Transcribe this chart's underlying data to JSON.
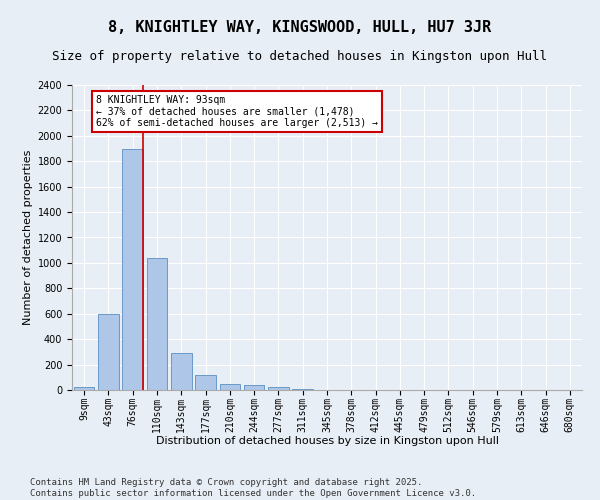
{
  "title": "8, KNIGHTLEY WAY, KINGSWOOD, HULL, HU7 3JR",
  "subtitle": "Size of property relative to detached houses in Kingston upon Hull",
  "xlabel": "Distribution of detached houses by size in Kingston upon Hull",
  "ylabel": "Number of detached properties",
  "footer": "Contains HM Land Registry data © Crown copyright and database right 2025.\nContains public sector information licensed under the Open Government Licence v3.0.",
  "categories": [
    "9sqm",
    "43sqm",
    "76sqm",
    "110sqm",
    "143sqm",
    "177sqm",
    "210sqm",
    "244sqm",
    "277sqm",
    "311sqm",
    "345sqm",
    "378sqm",
    "412sqm",
    "445sqm",
    "479sqm",
    "512sqm",
    "546sqm",
    "579sqm",
    "613sqm",
    "646sqm",
    "680sqm"
  ],
  "values": [
    20,
    600,
    1900,
    1040,
    295,
    115,
    50,
    40,
    25,
    5,
    0,
    0,
    0,
    0,
    0,
    0,
    0,
    0,
    0,
    0,
    0
  ],
  "bar_color": "#aec6e8",
  "bar_edge_color": "#5a8fc2",
  "vline_color": "#cc0000",
  "annotation_text": "8 KNIGHTLEY WAY: 93sqm\n← 37% of detached houses are smaller (1,478)\n62% of semi-detached houses are larger (2,513) →",
  "annotation_box_color": "#ffffff",
  "annotation_box_edge": "#cc0000",
  "ylim": [
    0,
    2400
  ],
  "yticks": [
    0,
    200,
    400,
    600,
    800,
    1000,
    1200,
    1400,
    1600,
    1800,
    2000,
    2200,
    2400
  ],
  "background_color": "#e8eef5",
  "grid_color": "#ffffff",
  "title_fontsize": 11,
  "subtitle_fontsize": 9,
  "axis_label_fontsize": 8,
  "tick_fontsize": 7,
  "annotation_fontsize": 7,
  "footer_fontsize": 6.5
}
